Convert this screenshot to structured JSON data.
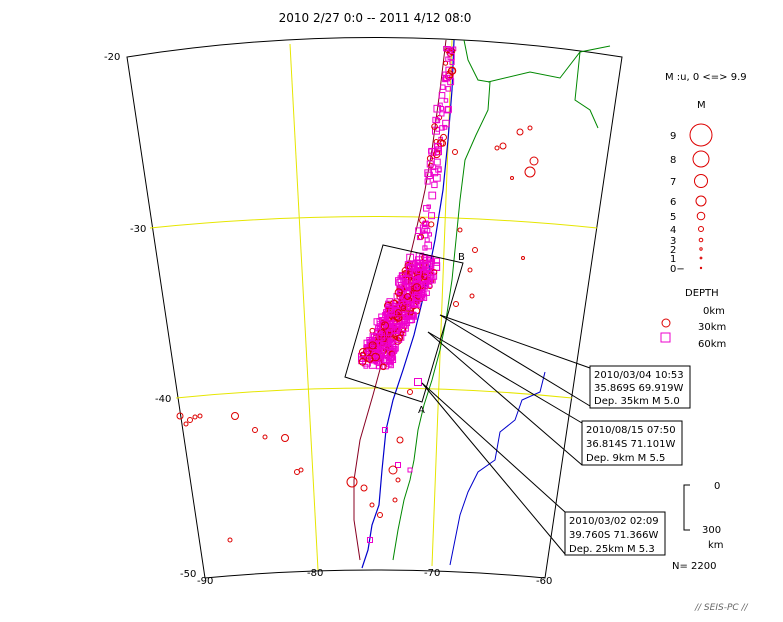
{
  "title": "2010 2/27 0:0 -- 2011 4/12 08:0",
  "map": {
    "lat_labels": [
      "-20",
      "-30",
      "-40",
      "-50"
    ],
    "lon_labels": [
      "-90",
      "-80",
      "-70",
      "-60"
    ],
    "lat_range": [
      -50,
      -20
    ],
    "lon_range": [
      -90,
      -60
    ]
  },
  "box_labels": {
    "a": "A",
    "b": "B"
  },
  "legend": {
    "magnitude_range": "M :u, 0 <=> 9.9",
    "magnitude_title": "M",
    "magnitudes": [
      "9",
      "8",
      "7",
      "6",
      "5",
      "4",
      "3",
      "2",
      "1",
      "0−"
    ],
    "depth_title": "DEPTH",
    "depths": [
      "0km",
      "30km",
      "60km"
    ],
    "depth_colors": {
      "shallow": "#dd0000",
      "deep": "#ee00cc"
    }
  },
  "callouts": [
    {
      "line1": "2010/03/04 10:53",
      "line2": "35.869S  69.919W",
      "line3": "Dep. 35km   M 5.0"
    },
    {
      "line1": "2010/08/15 07:50",
      "line2": "36.814S  71.101W",
      "line3": "Dep. 9km   M 5.5"
    },
    {
      "line1": "2010/03/02 02:09",
      "line2": "39.760S  71.366W",
      "line3": "Dep. 25km   M 5.3"
    }
  ],
  "depth_scale": {
    "top": "0",
    "bottom": "300",
    "unit": "km"
  },
  "count": "N= 2200",
  "footer": "// SEIS-PC //",
  "colors": {
    "grid": "#e6e600",
    "coast": "#0000cc",
    "border": "#008800",
    "trench": "#880022"
  }
}
